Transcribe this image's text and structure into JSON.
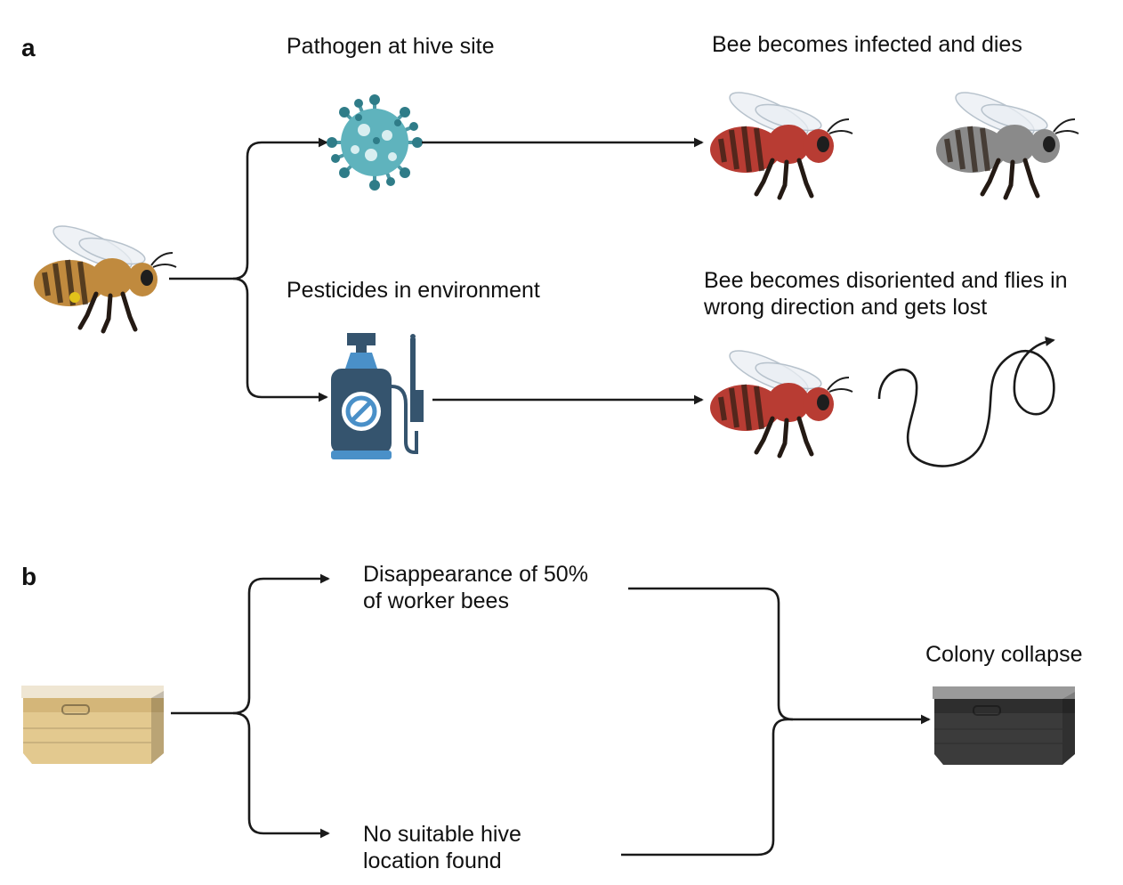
{
  "panel_a": {
    "letter": "a",
    "pathogen_label": "Pathogen at hive site",
    "infected_label": "Bee becomes infected and dies",
    "pesticide_label": "Pesticides in environment",
    "disoriented_label": [
      "Bee becomes disoriented and flies in",
      "wrong direction and gets lost"
    ]
  },
  "panel_b": {
    "letter": "b",
    "disappearance_label": [
      "Disappearance of 50%",
      "of worker bees"
    ],
    "no_hive_label": [
      "No suitable hive",
      "location found"
    ],
    "collapse_label": "Colony collapse"
  },
  "colors": {
    "healthy_bee": "#c08a3e",
    "infected_bee": "#b83c33",
    "dead_bee": "#8a8a8a",
    "virus": "#5fb3bd",
    "sprayer_body": "#35546e",
    "sprayer_accent": "#4a90c8",
    "hive_wood": "#e3c98f",
    "collapsed_hive": "#3b3b3b"
  },
  "icons": [
    "bee-icon",
    "virus-icon",
    "pesticide-sprayer-icon",
    "hive-box-icon",
    "lost-flight-path-icon"
  ]
}
